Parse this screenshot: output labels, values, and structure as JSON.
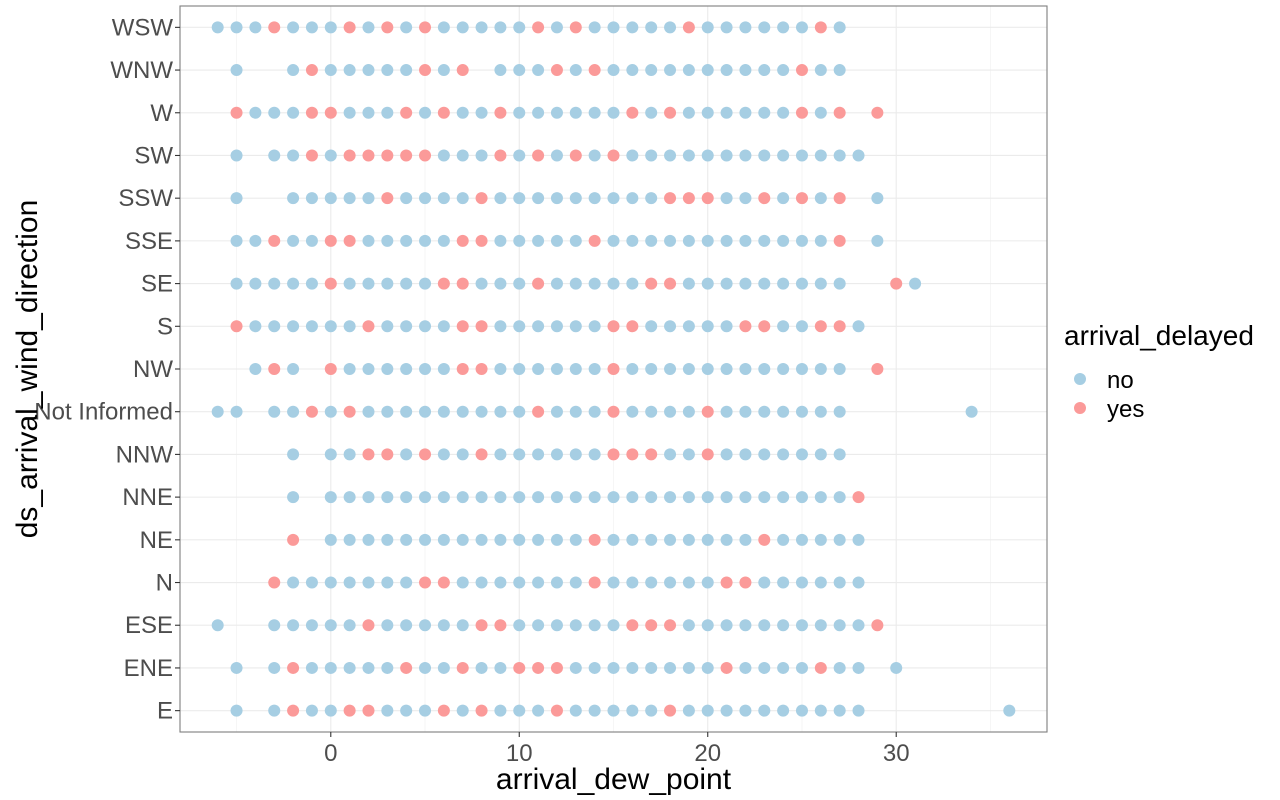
{
  "chart_data": {
    "type": "scatter",
    "title": "",
    "xlabel": "arrival_dew_point",
    "ylabel": "ds_arrival_wind_direction",
    "xlim": [
      -8,
      38
    ],
    "x_ticks": [
      0,
      10,
      20,
      30
    ],
    "x_tick_labels": [
      "0",
      "10",
      "20",
      "30"
    ],
    "categories": [
      "E",
      "ENE",
      "ESE",
      "N",
      "NE",
      "NNE",
      "NNW",
      "Not Informed",
      "NW",
      "S",
      "SE",
      "SSE",
      "SSW",
      "SW",
      "W",
      "WNW",
      "WSW"
    ],
    "grid": true,
    "legend": {
      "title": "arrival_delayed",
      "position": "right",
      "entries": [
        {
          "label": "no",
          "color": "#a6cee3"
        },
        {
          "label": "yes",
          "color": "#fb9a99"
        }
      ]
    },
    "colors": {
      "no": "#a6cee3",
      "yes": "#fb9a99",
      "panel_border": "#7f7f7f",
      "grid": "#ebebeb"
    },
    "series": [
      {
        "category": "WSW",
        "no": [
          -6,
          -5,
          -4,
          -2,
          -1,
          0,
          2,
          4,
          6,
          7,
          8,
          9,
          10,
          12,
          14,
          15,
          16,
          17,
          18,
          20,
          21,
          22,
          23,
          24,
          25,
          27
        ],
        "yes": [
          -3,
          1,
          3,
          5,
          11,
          13,
          19,
          26
        ]
      },
      {
        "category": "WNW",
        "no": [
          -5,
          -2,
          0,
          1,
          2,
          3,
          4,
          6,
          9,
          10,
          11,
          13,
          15,
          16,
          17,
          18,
          19,
          20,
          21,
          22,
          23,
          24,
          26,
          27
        ],
        "yes": [
          -1,
          5,
          7,
          12,
          14,
          25
        ]
      },
      {
        "category": "W",
        "no": [
          -4,
          -3,
          -2,
          1,
          2,
          3,
          5,
          7,
          8,
          10,
          11,
          12,
          13,
          14,
          15,
          17,
          19,
          20,
          21,
          22,
          23,
          24,
          26
        ],
        "yes": [
          -5,
          -1,
          0,
          4,
          6,
          9,
          16,
          18,
          25,
          27,
          29
        ]
      },
      {
        "category": "SW",
        "no": [
          -5,
          -3,
          -2,
          0,
          6,
          7,
          8,
          10,
          12,
          14,
          16,
          17,
          18,
          19,
          20,
          21,
          22,
          23,
          24,
          25,
          26,
          27,
          28
        ],
        "yes": [
          -1,
          1,
          2,
          3,
          4,
          5,
          9,
          11,
          13,
          15
        ]
      },
      {
        "category": "SSW",
        "no": [
          -5,
          -2,
          -1,
          0,
          1,
          2,
          4,
          5,
          6,
          7,
          9,
          10,
          11,
          12,
          13,
          14,
          15,
          16,
          17,
          21,
          22,
          24,
          26,
          29
        ],
        "yes": [
          3,
          8,
          18,
          19,
          20,
          23,
          25,
          27
        ]
      },
      {
        "category": "SSE",
        "no": [
          -5,
          -4,
          -2,
          -1,
          2,
          3,
          4,
          5,
          6,
          9,
          10,
          11,
          12,
          13,
          15,
          16,
          17,
          18,
          19,
          20,
          21,
          22,
          23,
          24,
          25,
          26,
          29
        ],
        "yes": [
          -3,
          0,
          1,
          7,
          8,
          14,
          27
        ]
      },
      {
        "category": "SE",
        "no": [
          -5,
          -4,
          -3,
          -2,
          -1,
          1,
          2,
          3,
          4,
          5,
          8,
          9,
          10,
          12,
          13,
          14,
          15,
          16,
          19,
          20,
          21,
          22,
          23,
          24,
          25,
          26,
          27,
          31
        ],
        "yes": [
          0,
          6,
          7,
          11,
          17,
          18,
          30
        ]
      },
      {
        "category": "S",
        "no": [
          -4,
          -3,
          -2,
          -1,
          0,
          1,
          3,
          4,
          5,
          6,
          9,
          10,
          11,
          12,
          13,
          14,
          17,
          18,
          19,
          20,
          21,
          24,
          25,
          28
        ],
        "yes": [
          -5,
          2,
          7,
          8,
          15,
          16,
          22,
          23,
          26,
          27
        ]
      },
      {
        "category": "NW",
        "no": [
          -4,
          -2,
          1,
          2,
          3,
          4,
          5,
          6,
          9,
          10,
          11,
          12,
          13,
          14,
          16,
          17,
          18,
          19,
          20,
          21,
          22,
          23,
          24,
          25,
          26,
          27
        ],
        "yes": [
          -3,
          0,
          7,
          8,
          15,
          29
        ]
      },
      {
        "category": "Not Informed",
        "no": [
          -6,
          -5,
          -3,
          -2,
          0,
          2,
          3,
          4,
          5,
          6,
          7,
          8,
          9,
          10,
          12,
          13,
          14,
          16,
          17,
          18,
          19,
          21,
          22,
          23,
          24,
          25,
          26,
          27,
          34
        ],
        "yes": [
          -1,
          1,
          11,
          15,
          20
        ]
      },
      {
        "category": "NNW",
        "no": [
          -2,
          0,
          1,
          4,
          6,
          7,
          9,
          10,
          11,
          12,
          13,
          14,
          18,
          19,
          21,
          22,
          23,
          24,
          25,
          26,
          27
        ],
        "yes": [
          2,
          3,
          5,
          8,
          15,
          16,
          17,
          20
        ]
      },
      {
        "category": "NNE",
        "no": [
          -2,
          0,
          1,
          2,
          3,
          4,
          5,
          6,
          7,
          8,
          9,
          10,
          11,
          12,
          13,
          14,
          15,
          16,
          17,
          18,
          19,
          20,
          21,
          22,
          23,
          24,
          25,
          26,
          27
        ],
        "yes": [
          28
        ]
      },
      {
        "category": "NE",
        "no": [
          0,
          1,
          2,
          3,
          4,
          5,
          6,
          7,
          8,
          9,
          10,
          11,
          12,
          13,
          15,
          16,
          17,
          18,
          19,
          20,
          21,
          22,
          24,
          25,
          26,
          27,
          28
        ],
        "yes": [
          -2,
          14,
          23
        ]
      },
      {
        "category": "N",
        "no": [
          -2,
          -1,
          0,
          1,
          2,
          3,
          4,
          7,
          8,
          9,
          10,
          11,
          12,
          13,
          15,
          16,
          17,
          18,
          19,
          20,
          23,
          24,
          25,
          26,
          27,
          28
        ],
        "yes": [
          -3,
          5,
          6,
          14,
          21,
          22
        ]
      },
      {
        "category": "ESE",
        "no": [
          -6,
          -3,
          -2,
          -1,
          0,
          1,
          3,
          4,
          5,
          6,
          7,
          10,
          11,
          12,
          13,
          14,
          15,
          19,
          20,
          21,
          22,
          23,
          24,
          25,
          26,
          27,
          28
        ],
        "yes": [
          2,
          8,
          9,
          16,
          17,
          18,
          29
        ]
      },
      {
        "category": "ENE",
        "no": [
          -5,
          -3,
          -1,
          0,
          1,
          2,
          3,
          5,
          6,
          8,
          9,
          13,
          14,
          15,
          16,
          17,
          18,
          19,
          20,
          22,
          23,
          24,
          25,
          27,
          28,
          30
        ],
        "yes": [
          -2,
          4,
          7,
          10,
          11,
          12,
          21,
          26
        ]
      },
      {
        "category": "E",
        "no": [
          -5,
          -3,
          -1,
          0,
          3,
          4,
          5,
          7,
          9,
          10,
          11,
          13,
          14,
          15,
          16,
          17,
          19,
          20,
          21,
          22,
          23,
          24,
          25,
          26,
          27,
          28,
          36
        ],
        "yes": [
          -2,
          1,
          2,
          6,
          8,
          12,
          18
        ]
      }
    ]
  }
}
